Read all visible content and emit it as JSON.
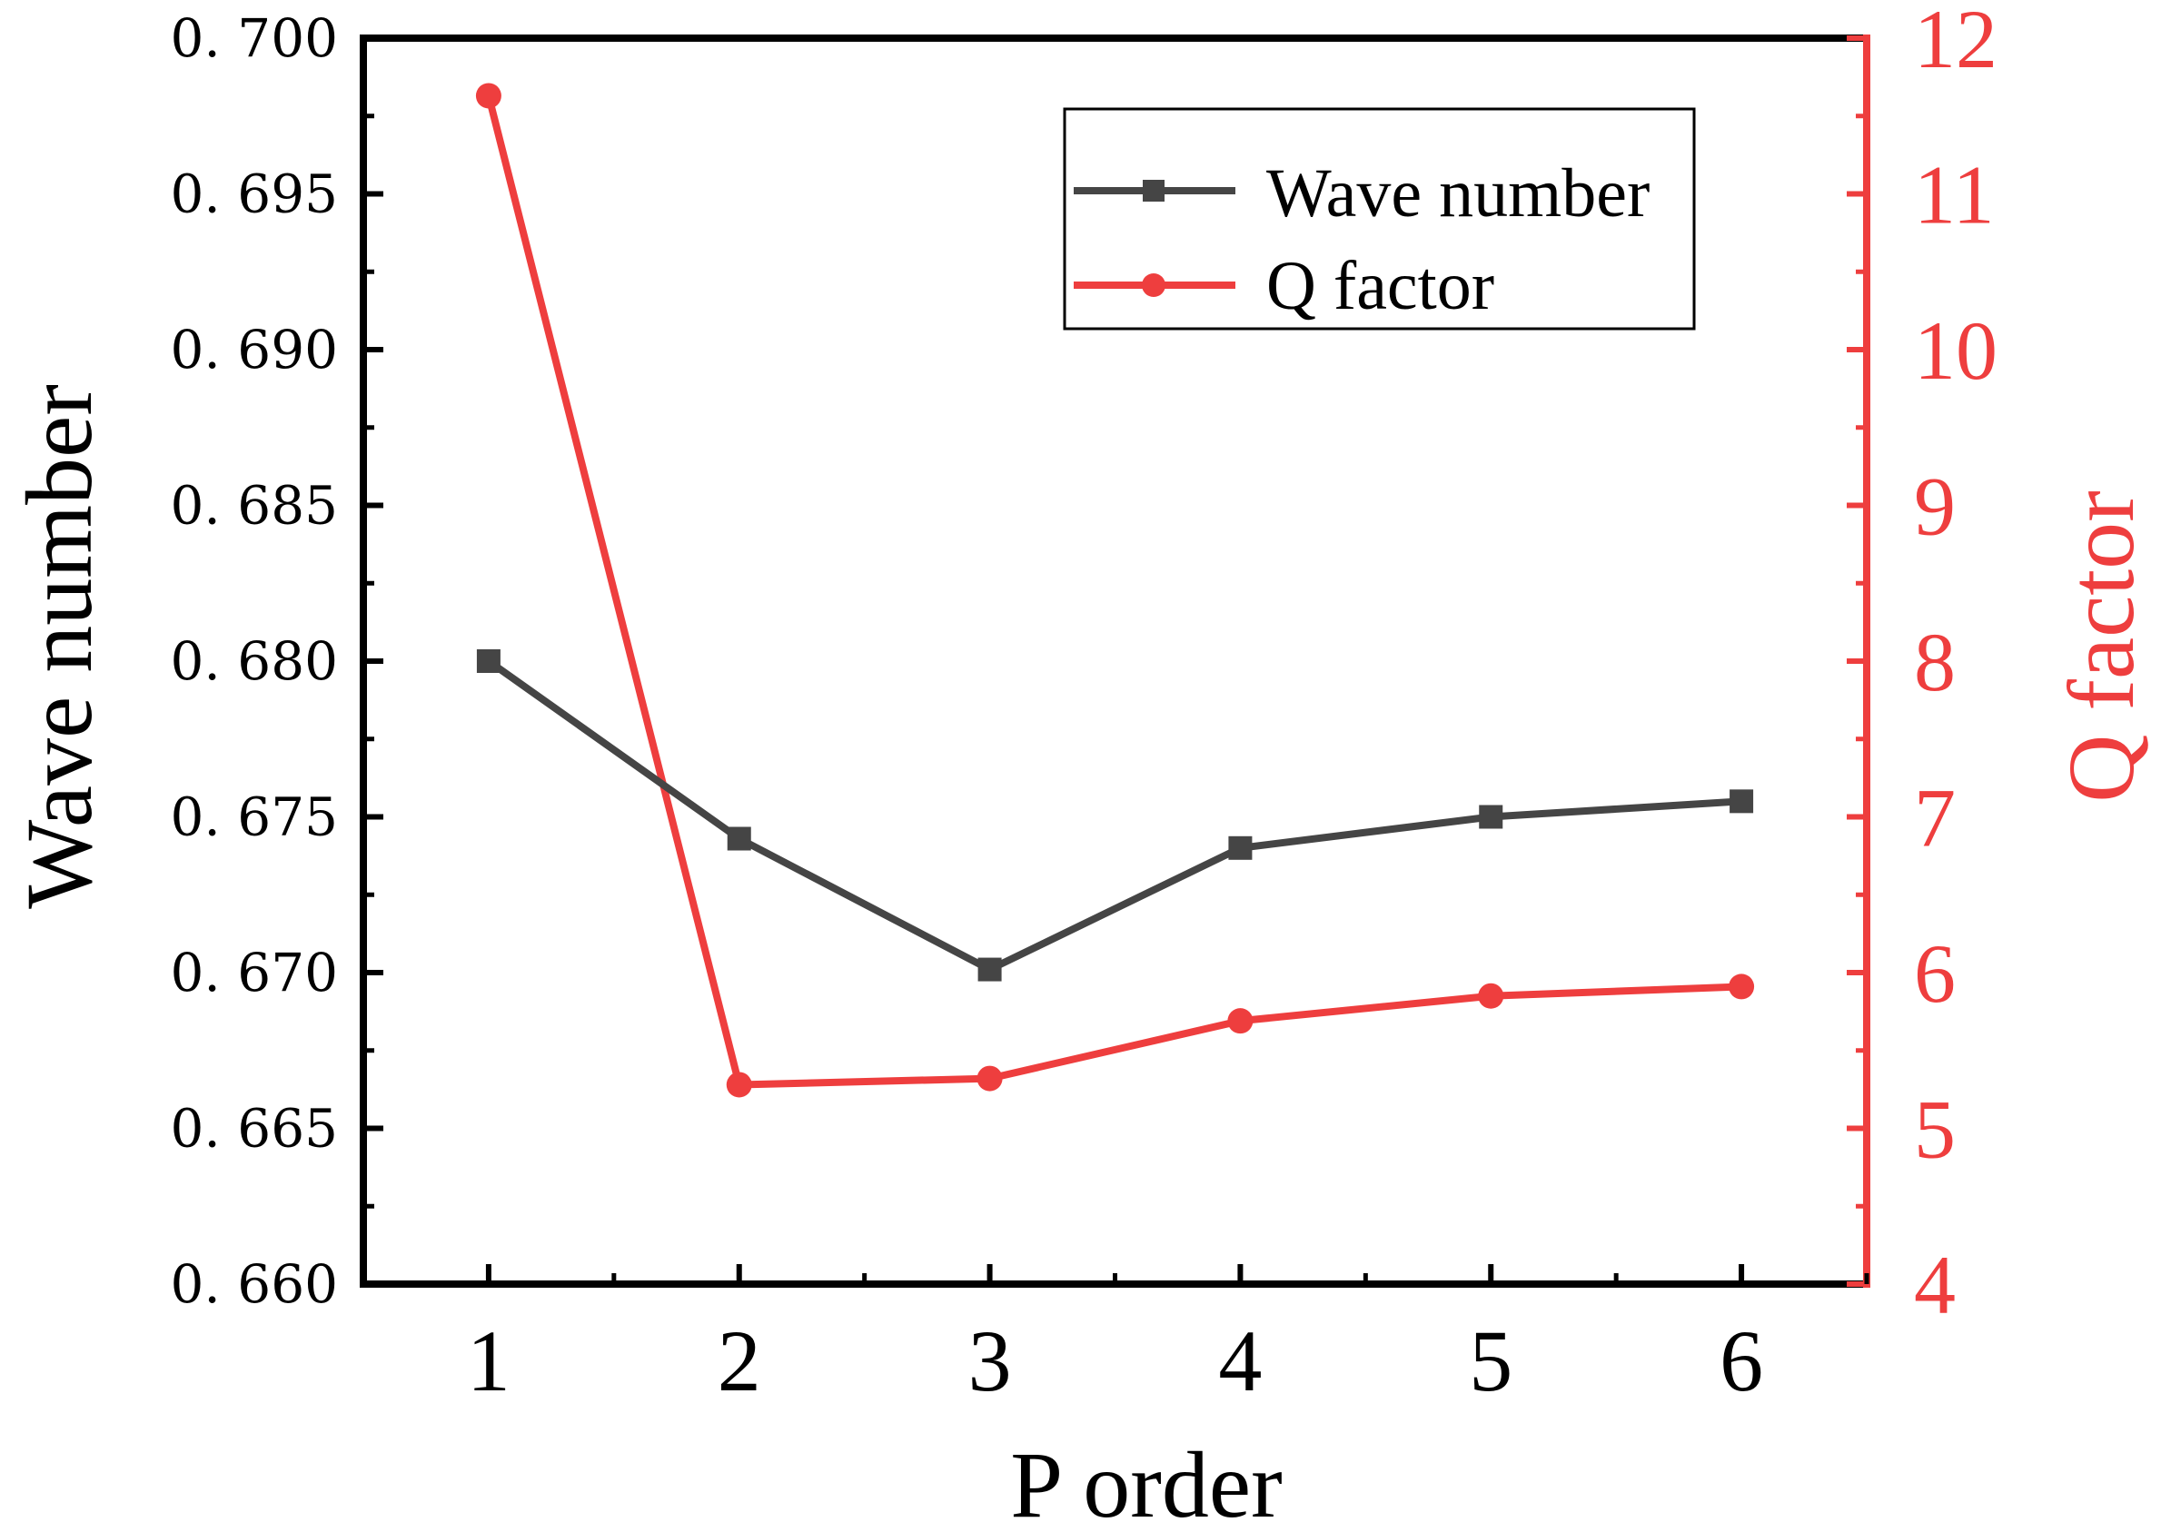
{
  "colors": {
    "wave": "#454545",
    "q": "#ee3e3e",
    "axis": "#000000"
  },
  "chart_data": {
    "type": "line",
    "x": [
      1,
      2,
      3,
      4,
      5,
      6
    ],
    "xlabel": "P order",
    "xlim": [
      0.5,
      6.5
    ],
    "xticks": [
      "1",
      "2",
      "3",
      "4",
      "5",
      "6"
    ],
    "ylabel": "Wave number",
    "ylim": [
      0.66,
      0.7
    ],
    "yticks": [
      "0. 660",
      "0. 665",
      "0. 670",
      "0. 675",
      "0. 680",
      "0. 685",
      "0. 690",
      "0. 695",
      "0. 700"
    ],
    "y2label": "Q factor",
    "y2lim": [
      4,
      12
    ],
    "y2ticks": [
      "4",
      "5",
      "6",
      "7",
      "8",
      "9",
      "10",
      "11",
      "12"
    ],
    "legend_position": "top-right",
    "grid": false,
    "series": [
      {
        "name": "Wave number",
        "axis": "left",
        "marker": "square",
        "values": [
          0.68,
          0.6743,
          0.6701,
          0.674,
          0.675,
          0.6755
        ]
      },
      {
        "name": "Q factor",
        "axis": "right",
        "marker": "circle",
        "values": [
          11.63,
          5.28,
          5.32,
          5.69,
          5.85,
          5.91
        ]
      }
    ]
  }
}
